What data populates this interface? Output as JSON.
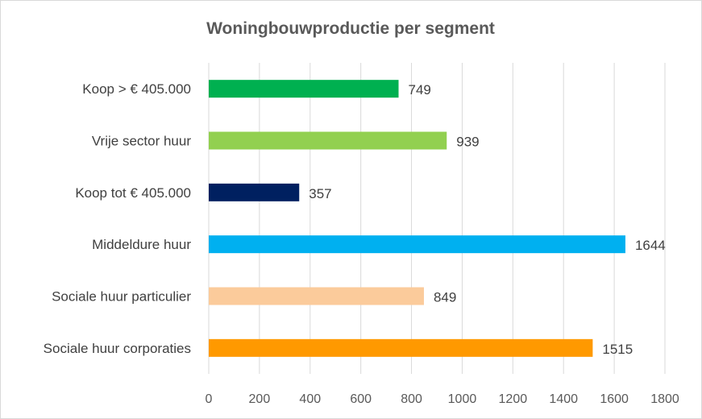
{
  "chart_data": {
    "type": "bar",
    "orientation": "horizontal",
    "title": "Woningbouwproductie  per segment",
    "categories": [
      "Koop > € 405.000",
      "Vrije sector huur",
      "Koop tot € 405.000",
      "Middeldure huur",
      "Sociale huur particulier",
      "Sociale huur corporaties"
    ],
    "values": [
      749,
      939,
      357,
      1644,
      849,
      1515
    ],
    "colors": [
      "#00b050",
      "#92d050",
      "#002060",
      "#00b0f0",
      "#fbcb9b",
      "#ff9900"
    ],
    "xlim": [
      0,
      1800
    ],
    "xticks": [
      0,
      200,
      400,
      600,
      800,
      1000,
      1200,
      1400,
      1600,
      1800
    ],
    "xlabel": "",
    "ylabel": "",
    "grid": "vertical",
    "legend": "none",
    "data_labels": true
  }
}
